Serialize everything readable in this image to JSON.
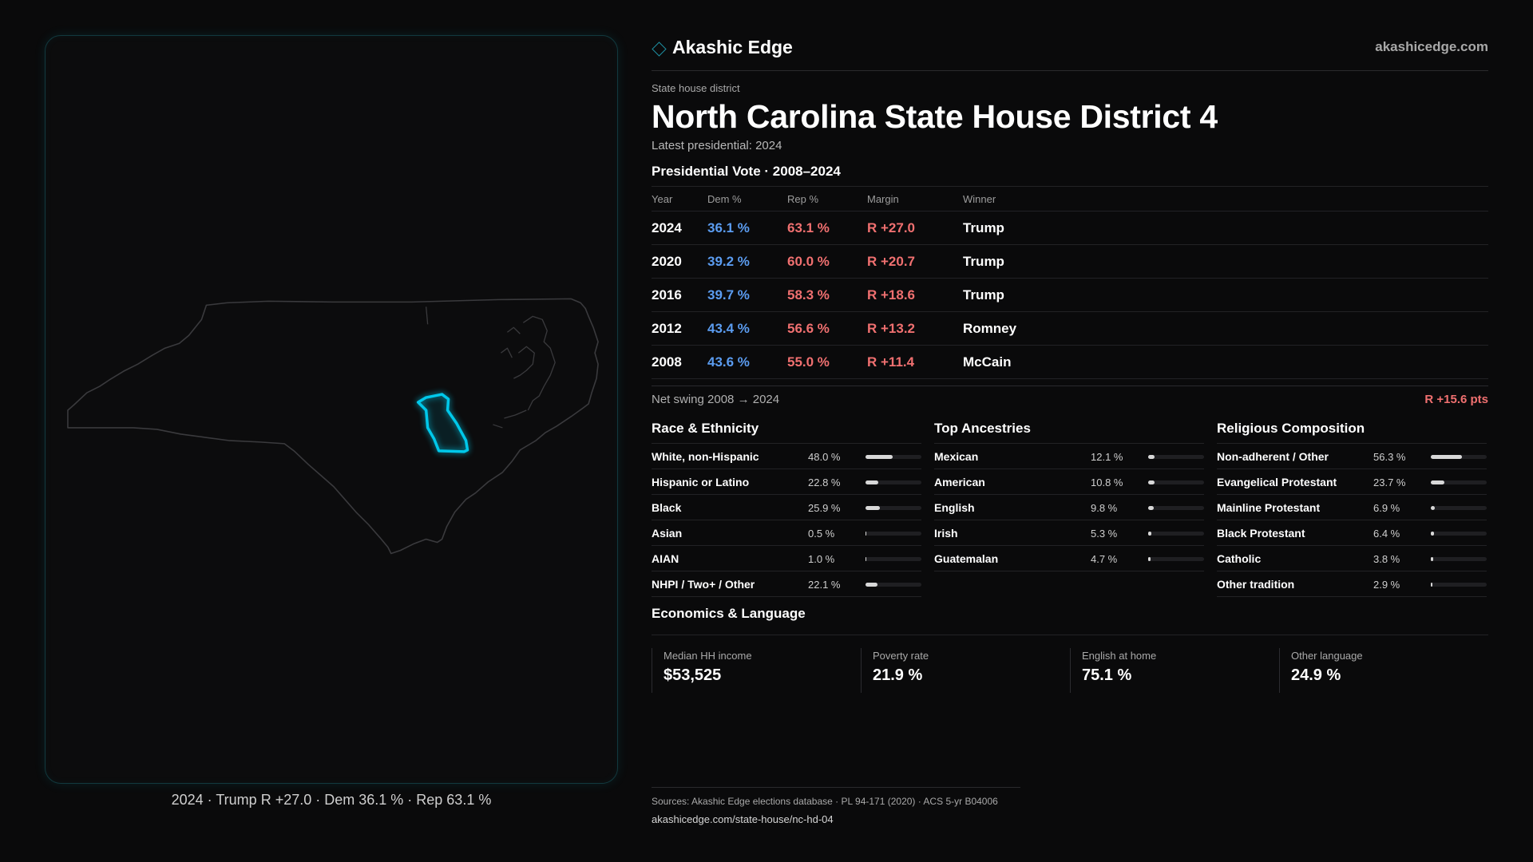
{
  "brand": {
    "name": "Akashic Edge",
    "url": "akashicedge.com"
  },
  "district": {
    "kind": "State house district",
    "title": "North Carolina State House District 4",
    "latest": "Latest presidential: 2024"
  },
  "map": {
    "caption": "2024 · Trump R +27.0 · Dem 36.1 % · Rep 63.1 %",
    "highlight_color": "#00c8ea"
  },
  "vote": {
    "title": "Presidential Vote · 2008–2024",
    "headers": {
      "year": "Year",
      "dem": "Dem %",
      "rep": "Rep %",
      "margin": "Margin",
      "winner": "Winner"
    },
    "rows": [
      {
        "year": "2024",
        "dem": "36.1 %",
        "rep": "63.1 %",
        "margin": "R +27.0",
        "winner": "Trump"
      },
      {
        "year": "2020",
        "dem": "39.2 %",
        "rep": "60.0 %",
        "margin": "R +20.7",
        "winner": "Trump"
      },
      {
        "year": "2016",
        "dem": "39.7 %",
        "rep": "58.3 %",
        "margin": "R +18.6",
        "winner": "Trump"
      },
      {
        "year": "2012",
        "dem": "43.4 %",
        "rep": "56.6 %",
        "margin": "R +13.2",
        "winner": "Romney"
      },
      {
        "year": "2008",
        "dem": "43.6 %",
        "rep": "55.0 %",
        "margin": "R +11.4",
        "winner": "McCain"
      }
    ],
    "swing_label": "Net swing 2008 → 2024",
    "swing_value": "R +15.6 pts"
  },
  "race": {
    "title": "Race & Ethnicity",
    "rows": [
      {
        "label": "White, non-Hispanic",
        "pct": "48.0 %",
        "share": 48.0
      },
      {
        "label": "Hispanic or Latino",
        "pct": "22.8 %",
        "share": 22.8
      },
      {
        "label": "Black",
        "pct": "25.9 %",
        "share": 25.9
      },
      {
        "label": "Asian",
        "pct": "0.5 %",
        "share": 0.5
      },
      {
        "label": "AIAN",
        "pct": "1.0 %",
        "share": 1.0
      },
      {
        "label": "NHPI / Two+ / Other",
        "pct": "22.1 %",
        "share": 22.1
      }
    ]
  },
  "ancestry": {
    "title": "Top Ancestries",
    "rows": [
      {
        "label": "Mexican",
        "pct": "12.1 %",
        "share": 12.1
      },
      {
        "label": "American",
        "pct": "10.8 %",
        "share": 10.8
      },
      {
        "label": "English",
        "pct": "9.8 %",
        "share": 9.8
      },
      {
        "label": "Irish",
        "pct": "5.3 %",
        "share": 5.3
      },
      {
        "label": "Guatemalan",
        "pct": "4.7 %",
        "share": 4.7
      }
    ]
  },
  "religion": {
    "title": "Religious Composition",
    "rows": [
      {
        "label": "Non-adherent / Other",
        "pct": "56.3 %",
        "share": 56.3
      },
      {
        "label": "Evangelical Protestant",
        "pct": "23.7 %",
        "share": 23.7
      },
      {
        "label": "Mainline Protestant",
        "pct": "6.9 %",
        "share": 6.9
      },
      {
        "label": "Black Protestant",
        "pct": "6.4 %",
        "share": 6.4
      },
      {
        "label": "Catholic",
        "pct": "3.8 %",
        "share": 3.8
      },
      {
        "label": "Other tradition",
        "pct": "2.9 %",
        "share": 2.9
      }
    ]
  },
  "economics": {
    "title": "Economics & Language",
    "cards": [
      {
        "label": "Median HH income",
        "value": "$53,525"
      },
      {
        "label": "Poverty rate",
        "value": "21.9 %"
      },
      {
        "label": "English at home",
        "value": "75.1 %"
      },
      {
        "label": "Other language",
        "value": "24.9 %"
      }
    ]
  },
  "sources": {
    "line": "Sources: Akashic Edge elections database · PL 94-171 (2020) · ACS 5-yr B04006",
    "url": "akashicedge.com/state-house/nc-hd-04"
  }
}
